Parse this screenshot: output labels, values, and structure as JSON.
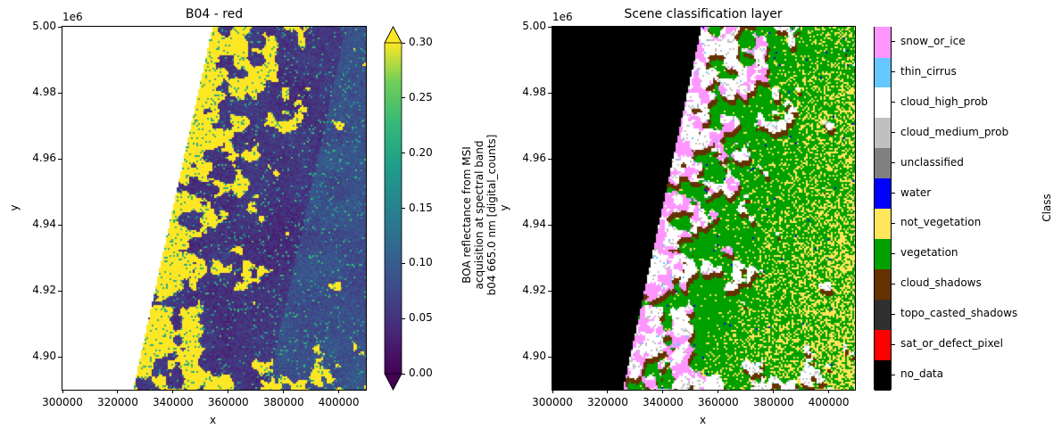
{
  "chart_data": [
    {
      "type": "heatmap",
      "title": "B04 - red",
      "xlabel": "x",
      "ylabel": "y",
      "offset_text": "1e6",
      "xlim": [
        300000,
        409800
      ],
      "ylim": [
        4.89,
        5.0
      ],
      "xticks": [
        300000,
        320000,
        340000,
        360000,
        380000,
        400000
      ],
      "xtick_labels": [
        "300000",
        "320000",
        "340000",
        "360000",
        "380000",
        "400000"
      ],
      "yticks": [
        4.9,
        4.92,
        4.94,
        4.96,
        4.98,
        5.0
      ],
      "ytick_labels": [
        "4.90",
        "4.92",
        "4.94",
        "4.96",
        "4.98",
        "5.00"
      ],
      "colormap": "viridis",
      "colorbar": {
        "label_lines": [
          "BOA reflectance from MSI",
          "acquisition at spectral band",
          "b04 665.0 nm [digital_counts]"
        ],
        "range": [
          0.0,
          0.3
        ],
        "extend": "both",
        "ticks": [
          0.0,
          0.05,
          0.1,
          0.15,
          0.2,
          0.25,
          0.3
        ],
        "tick_labels": [
          "0.00",
          "0.05",
          "0.10",
          "0.15",
          "0.20",
          "0.25",
          "0.30"
        ]
      }
    },
    {
      "type": "heatmap",
      "title": "Scene classification layer",
      "xlabel": "x",
      "ylabel": "y",
      "offset_text": "1e6",
      "xlim": [
        300000,
        409800
      ],
      "ylim": [
        4.89,
        5.0
      ],
      "xticks": [
        300000,
        320000,
        340000,
        360000,
        380000,
        400000
      ],
      "xtick_labels": [
        "300000",
        "320000",
        "340000",
        "360000",
        "380000",
        "400000"
      ],
      "yticks": [
        4.9,
        4.92,
        4.94,
        4.96,
        4.98,
        5.0
      ],
      "ytick_labels": [
        "4.90",
        "4.92",
        "4.94",
        "4.96",
        "4.98",
        "5.00"
      ],
      "colorbar": {
        "label": "Class",
        "classes": [
          {
            "name": "no_data",
            "color": "#000000"
          },
          {
            "name": "sat_or_defect_pixel",
            "color": "#ff0000"
          },
          {
            "name": "topo_casted_shadows",
            "color": "#2f2f2f"
          },
          {
            "name": "cloud_shadows",
            "color": "#643200"
          },
          {
            "name": "vegetation",
            "color": "#00a000"
          },
          {
            "name": "not_vegetation",
            "color": "#ffe65a"
          },
          {
            "name": "water",
            "color": "#0000ff"
          },
          {
            "name": "unclassified",
            "color": "#808080"
          },
          {
            "name": "cloud_medium_prob",
            "color": "#c0c0c0"
          },
          {
            "name": "cloud_high_prob",
            "color": "#ffffff"
          },
          {
            "name": "thin_cirrus",
            "color": "#64c8ff"
          },
          {
            "name": "snow_or_ice",
            "color": "#ff96ff"
          }
        ]
      }
    }
  ]
}
